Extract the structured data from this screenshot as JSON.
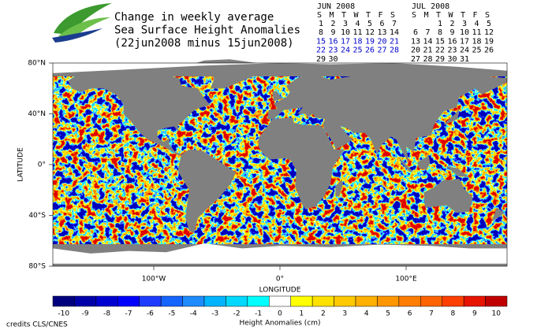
{
  "title_lines": [
    "Change in weekly average",
    "Sea Surface Height Anomalies",
    "(22jun2008 minus 15jun2008)"
  ],
  "calendars": [
    {
      "title": "JUN 2008",
      "weekdays": [
        "S",
        "M",
        "T",
        "W",
        "T",
        "F",
        "S"
      ],
      "weeks": [
        [
          1,
          2,
          3,
          4,
          5,
          6,
          7
        ],
        [
          8,
          9,
          10,
          11,
          12,
          13,
          14
        ],
        [
          15,
          16,
          17,
          18,
          19,
          20,
          21
        ],
        [
          22,
          23,
          24,
          25,
          26,
          27,
          28
        ],
        [
          29,
          30,
          null,
          null,
          null,
          null,
          null
        ]
      ],
      "highlight_weeks": [
        2,
        3
      ],
      "highlight_color": "#0000cc"
    },
    {
      "title": "JUL 2008",
      "weekdays": [
        "S",
        "M",
        "T",
        "W",
        "T",
        "F",
        "S"
      ],
      "weeks": [
        [
          null,
          null,
          1,
          2,
          3,
          4,
          5
        ],
        [
          6,
          7,
          8,
          9,
          10,
          11,
          12
        ],
        [
          13,
          14,
          15,
          16,
          17,
          18,
          19
        ],
        [
          20,
          21,
          22,
          23,
          24,
          25,
          26
        ],
        [
          27,
          28,
          29,
          30,
          31,
          null,
          null
        ]
      ],
      "highlight_weeks": [],
      "highlight_color": "#0000cc"
    }
  ],
  "map": {
    "xlabel": "LONGITUDE",
    "ylabel": "LATITUDE",
    "xlim": [
      -180,
      180
    ],
    "ylim": [
      -80,
      80
    ],
    "xticks": [
      {
        "value": -100,
        "label": "100°W"
      },
      {
        "value": 0,
        "label": "0°"
      },
      {
        "value": 100,
        "label": "100°E"
      }
    ],
    "yticks": [
      {
        "value": 80,
        "label": "80°N"
      },
      {
        "value": 40,
        "label": "40°N"
      },
      {
        "value": 0,
        "label": "0°"
      },
      {
        "value": -40,
        "label": "40°S"
      },
      {
        "value": -80,
        "label": "80°S"
      }
    ]
  },
  "colorbar": {
    "title": "Height Anomalies (cm)",
    "values": [
      -10,
      -9,
      -8,
      -7,
      -6,
      -5,
      -4,
      -3,
      -2,
      -1,
      0,
      1,
      2,
      3,
      4,
      5,
      6,
      7,
      8,
      9,
      10
    ],
    "colors": [
      "#00007f",
      "#0000a8",
      "#0000d0",
      "#0000ff",
      "#1e3cff",
      "#1464ff",
      "#1e8cff",
      "#00b4ff",
      "#00d8ff",
      "#00ffff",
      "#ffffff",
      "#ffff00",
      "#ffe100",
      "#ffc800",
      "#ffb000",
      "#ff9600",
      "#ff7d00",
      "#ff6400",
      "#ff4000",
      "#e61400",
      "#c00000"
    ]
  },
  "credits": "credits CLS/CNES"
}
